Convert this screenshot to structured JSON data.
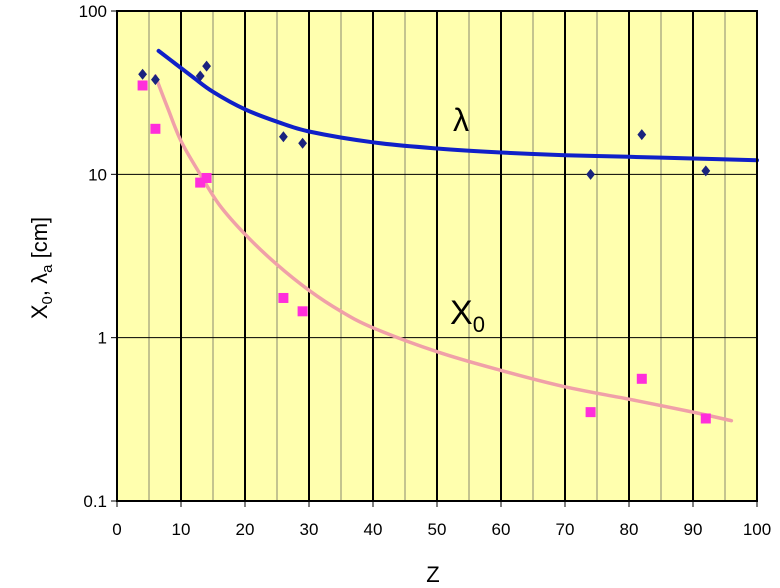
{
  "chart_data": {
    "type": "scatter",
    "x_axis": {
      "label": "Z",
      "range": [
        0,
        100
      ],
      "ticks": [
        0,
        10,
        20,
        30,
        40,
        50,
        60,
        70,
        80,
        90,
        100
      ],
      "tick_labels": [
        "0",
        "10",
        "20",
        "30",
        "40",
        "50",
        "60",
        "70",
        "80",
        "90",
        "100"
      ]
    },
    "y_axis": {
      "label_parts": [
        "X",
        "0",
        ", λ",
        "a",
        " [cm]"
      ],
      "scale": "log",
      "range": [
        0.1,
        100
      ],
      "ticks": [
        0.1,
        1,
        10,
        100
      ],
      "tick_labels": [
        "0.1",
        "1",
        "10",
        "100"
      ]
    },
    "grid": {
      "vertical_major_every": 10,
      "vertical_minor_every": 5,
      "horizontal_at": [
        1,
        10
      ]
    },
    "background_color": "#FFFFAE",
    "series": [
      {
        "label": "λ",
        "marker": "diamond",
        "marker_color": "#1A237E",
        "curve_color": "#1020C8",
        "points": [
          [
            4,
            41
          ],
          [
            6,
            38
          ],
          [
            13,
            40
          ],
          [
            14,
            46
          ],
          [
            26,
            17
          ],
          [
            29,
            15.5
          ],
          [
            74,
            10
          ],
          [
            82,
            17.5
          ],
          [
            92,
            10.5
          ]
        ],
        "curve": [
          [
            6.5,
            57
          ],
          [
            9,
            48
          ],
          [
            12,
            39
          ],
          [
            15,
            32
          ],
          [
            20,
            25
          ],
          [
            25,
            21
          ],
          [
            30,
            18.3
          ],
          [
            40,
            15.7
          ],
          [
            50,
            14.4
          ],
          [
            60,
            13.6
          ],
          [
            70,
            13.1
          ],
          [
            80,
            12.8
          ],
          [
            90,
            12.5
          ],
          [
            100,
            12.2
          ]
        ]
      },
      {
        "label_parts": [
          "X",
          "0"
        ],
        "marker": "square",
        "marker_color": "#FF2EDB",
        "curve_color": "#F0A0A8",
        "points": [
          [
            4,
            35
          ],
          [
            6,
            19
          ],
          [
            13,
            8.9
          ],
          [
            14,
            9.5
          ],
          [
            26,
            1.75
          ],
          [
            29,
            1.45
          ],
          [
            74,
            0.35
          ],
          [
            82,
            0.56
          ],
          [
            92,
            0.32
          ]
        ],
        "curve": [
          [
            6,
            40
          ],
          [
            8,
            25
          ],
          [
            10,
            16
          ],
          [
            13,
            10
          ],
          [
            16,
            6.5
          ],
          [
            20,
            4.3
          ],
          [
            25,
            2.8
          ],
          [
            30,
            1.95
          ],
          [
            35,
            1.45
          ],
          [
            40,
            1.15
          ],
          [
            50,
            0.82
          ],
          [
            60,
            0.63
          ],
          [
            70,
            0.5
          ],
          [
            80,
            0.42
          ],
          [
            90,
            0.35
          ],
          [
            96,
            0.31
          ]
        ]
      }
    ]
  }
}
